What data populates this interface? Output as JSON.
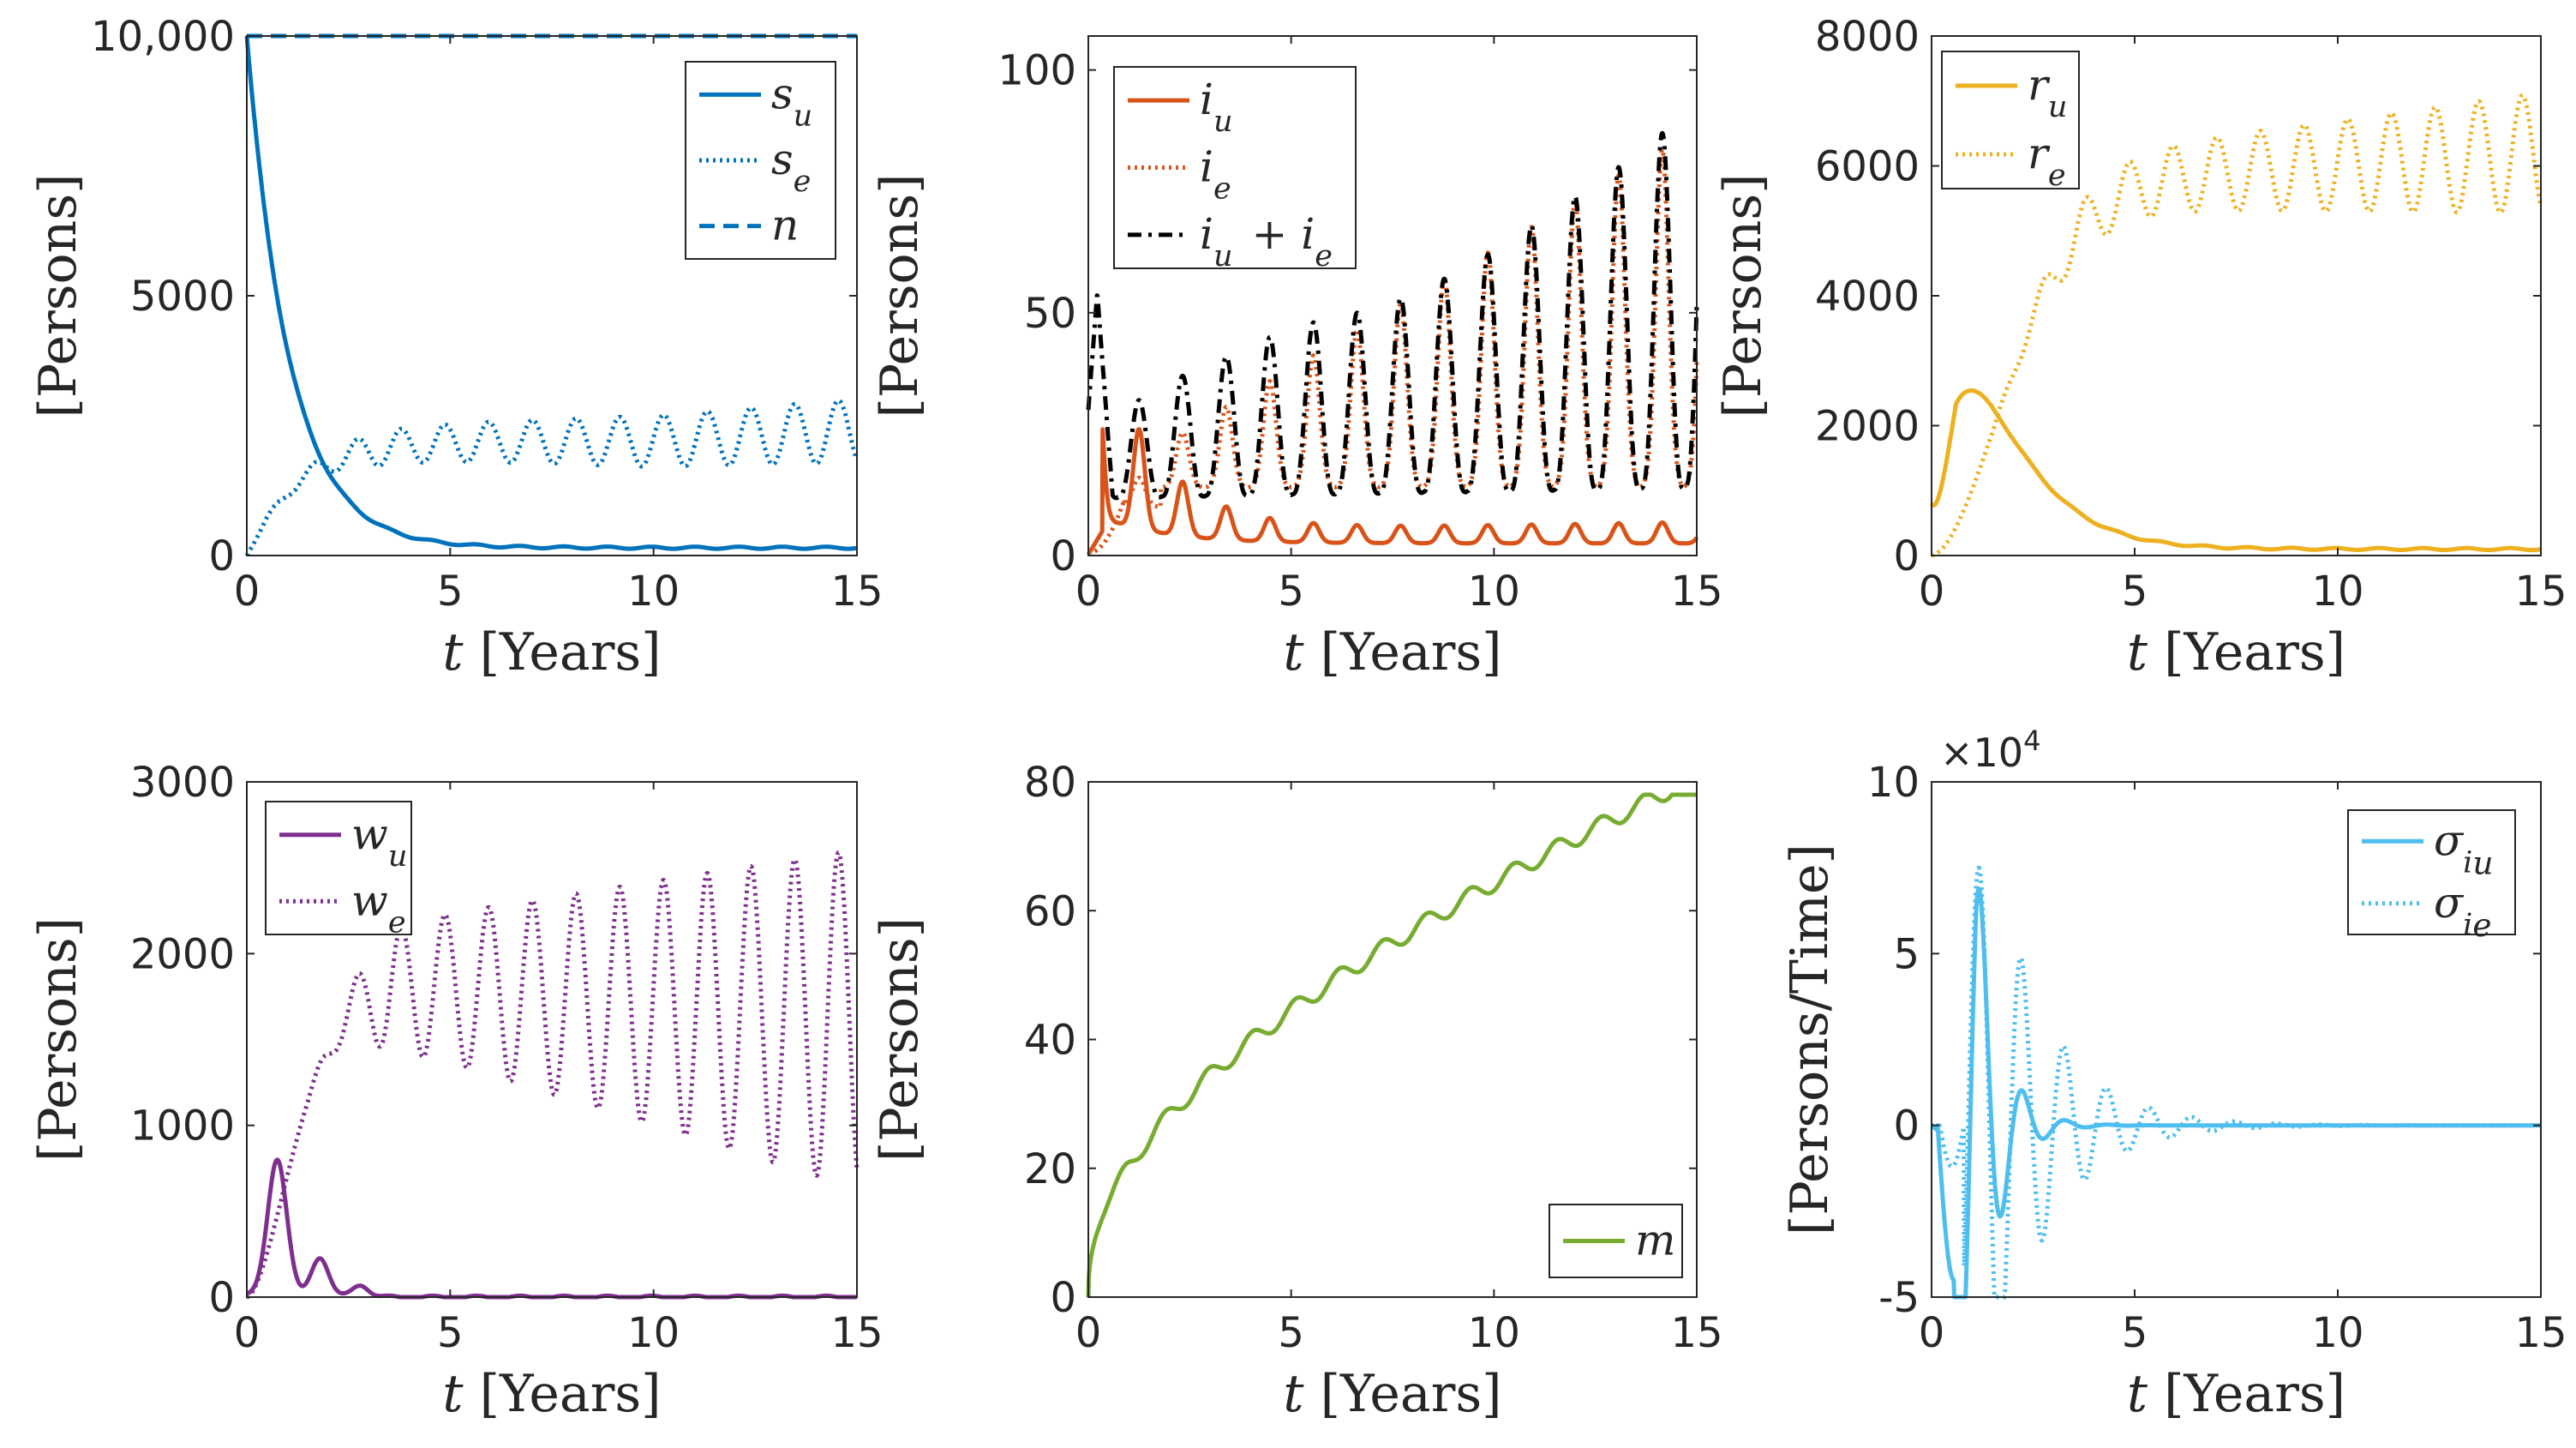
{
  "chart_data": [
    {
      "type": "line",
      "xlabel_var": "t",
      "xlabel_unit": "[Years]",
      "ylabel": "[Persons]",
      "xlim": [
        0,
        15
      ],
      "ylim": [
        0,
        10000
      ],
      "xticks": [
        0,
        5,
        10,
        15
      ],
      "xtick_labels": [
        "0",
        "5",
        "10",
        "15"
      ],
      "yticks": [
        0,
        5000,
        10000
      ],
      "ytick_labels": [
        "0",
        "5000",
        "10,000"
      ],
      "legend_position": "top-right",
      "series": [
        {
          "name": "s",
          "sub": "u",
          "color": "#0072BD",
          "style": "solid",
          "gen": "su"
        },
        {
          "name": "s",
          "sub": "e",
          "color": "#0072BD",
          "style": "dotted",
          "gen": "se"
        },
        {
          "name": "n",
          "sub": "",
          "color": "#0072BD",
          "style": "dashed",
          "gen": "n"
        }
      ]
    },
    {
      "type": "line",
      "xlabel_var": "t",
      "xlabel_unit": "[Years]",
      "ylabel": "[Persons]",
      "xlim": [
        0,
        15
      ],
      "ylim": [
        0,
        107
      ],
      "xticks": [
        0,
        5,
        10,
        15
      ],
      "xtick_labels": [
        "0",
        "5",
        "10",
        "15"
      ],
      "yticks": [
        0,
        50,
        100
      ],
      "ytick_labels": [
        "0",
        "50",
        "100"
      ],
      "legend_position": "top-left",
      "series": [
        {
          "name": "i",
          "sub": "u",
          "color": "#D95319",
          "style": "solid",
          "gen": "iu"
        },
        {
          "name": "i",
          "sub": "e",
          "color": "#D95319",
          "style": "dotted",
          "gen": "ie"
        },
        {
          "name": "i",
          "sub": "u",
          "extra": "+ i",
          "extra_sub": "e",
          "color": "#000000",
          "style": "dashdot",
          "gen": "isum"
        }
      ]
    },
    {
      "type": "line",
      "xlabel_var": "t",
      "xlabel_unit": "[Years]",
      "ylabel": "[Persons]",
      "xlim": [
        0,
        15
      ],
      "ylim": [
        0,
        8000
      ],
      "xticks": [
        0,
        5,
        10,
        15
      ],
      "xtick_labels": [
        "0",
        "5",
        "10",
        "15"
      ],
      "yticks": [
        0,
        2000,
        4000,
        6000,
        8000
      ],
      "ytick_labels": [
        "0",
        "2000",
        "4000",
        "6000",
        "8000"
      ],
      "legend_position": "top-left",
      "series": [
        {
          "name": "r",
          "sub": "u",
          "color": "#EDB120",
          "style": "solid",
          "gen": "ru"
        },
        {
          "name": "r",
          "sub": "e",
          "color": "#EDB120",
          "style": "dotted",
          "gen": "re"
        }
      ]
    },
    {
      "type": "line",
      "xlabel_var": "t",
      "xlabel_unit": "[Years]",
      "ylabel": "[Persons]",
      "xlim": [
        0,
        15
      ],
      "ylim": [
        0,
        3000
      ],
      "xticks": [
        0,
        5,
        10,
        15
      ],
      "xtick_labels": [
        "0",
        "5",
        "10",
        "15"
      ],
      "yticks": [
        0,
        1000,
        2000,
        3000
      ],
      "ytick_labels": [
        "0",
        "1000",
        "2000",
        "3000"
      ],
      "legend_position": "top-left",
      "series": [
        {
          "name": "w",
          "sub": "u",
          "color": "#7E2F8E",
          "style": "solid",
          "gen": "wu"
        },
        {
          "name": "w",
          "sub": "e",
          "color": "#7E2F8E",
          "style": "dotted",
          "gen": "we"
        }
      ]
    },
    {
      "type": "line",
      "xlabel_var": "t",
      "xlabel_unit": "[Years]",
      "ylabel": "[Persons]",
      "xlim": [
        0,
        15
      ],
      "ylim": [
        0,
        80
      ],
      "xticks": [
        0,
        5,
        10,
        15
      ],
      "xtick_labels": [
        "0",
        "5",
        "10",
        "15"
      ],
      "yticks": [
        0,
        20,
        40,
        60,
        80
      ],
      "ytick_labels": [
        "0",
        "20",
        "40",
        "60",
        "80"
      ],
      "legend_position": "bottom-right",
      "series": [
        {
          "name": "m",
          "sub": "",
          "color": "#77AC30",
          "style": "solid",
          "gen": "m"
        }
      ]
    },
    {
      "type": "line",
      "xlabel_var": "t",
      "xlabel_unit": "[Years]",
      "ylabel": "[Persons/Time]",
      "multiplier": "×10",
      "multiplier_exp": "4",
      "xlim": [
        0,
        15
      ],
      "ylim": [
        -5,
        10
      ],
      "xticks": [
        0,
        5,
        10,
        15
      ],
      "xtick_labels": [
        "0",
        "5",
        "10",
        "15"
      ],
      "yticks": [
        -5,
        0,
        5,
        10
      ],
      "ytick_labels": [
        "-5",
        "0",
        "5",
        "10"
      ],
      "legend_position": "top-right",
      "series": [
        {
          "name": "σ",
          "sub": "i",
          "subsub": "u",
          "color": "#4DBEEE",
          "style": "solid",
          "gen": "sigu"
        },
        {
          "name": "σ",
          "sub": "i",
          "subsub": "e",
          "color": "#4DBEEE",
          "style": "dotted",
          "gen": "sige"
        }
      ]
    }
  ]
}
